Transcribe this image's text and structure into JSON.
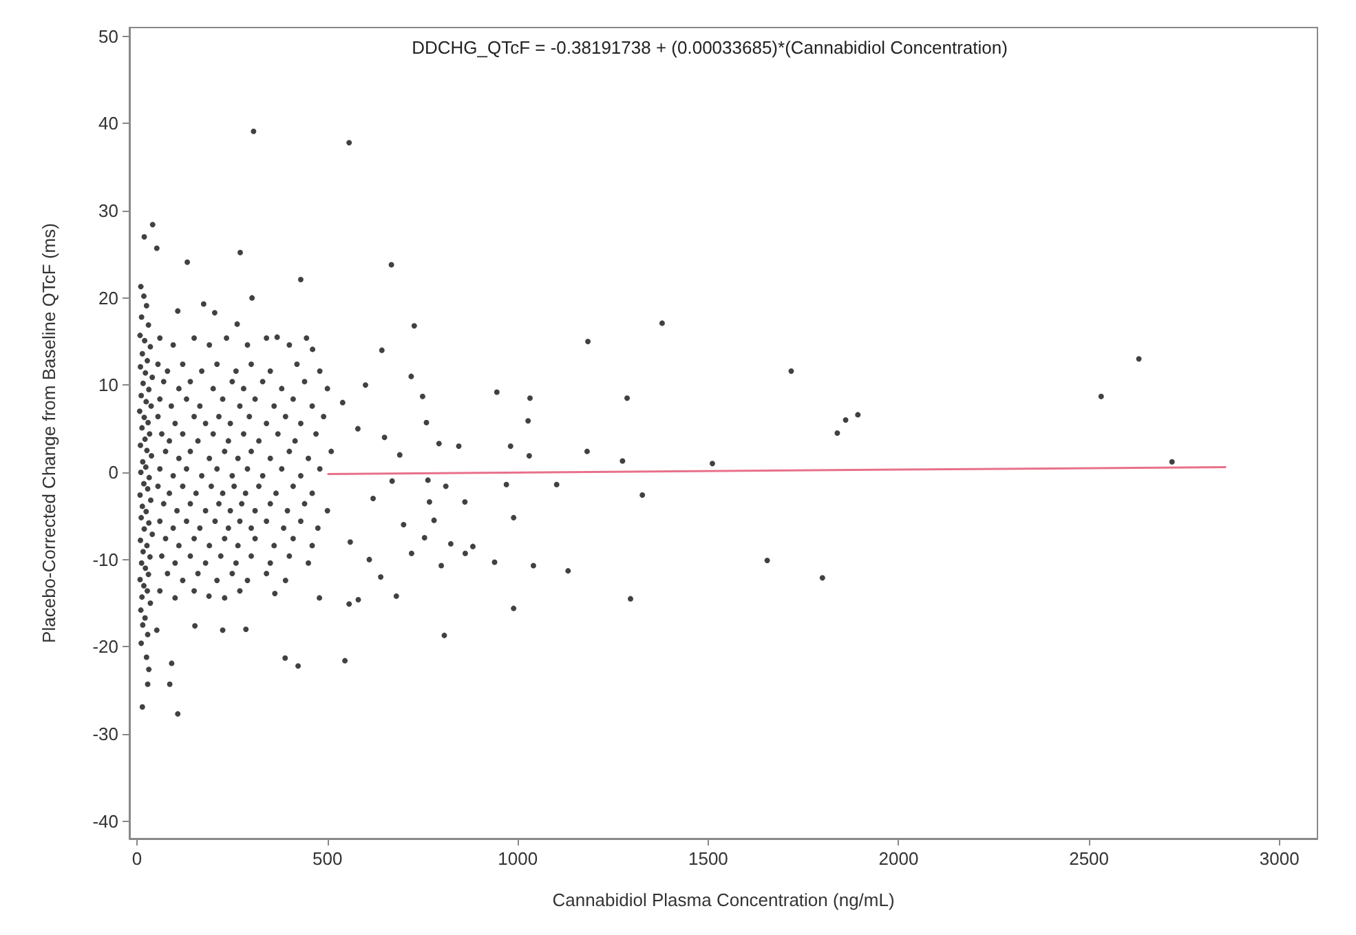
{
  "chart_data": {
    "type": "scatter",
    "xlabel": "Cannabidiol Plasma Concentration (ng/mL)",
    "ylabel": "Placebo-Corrected Change from Baseline QTcF (ms)",
    "annotations": [
      "DDCHG_QTcF = -0.38191738 + (0.00033685)*(Cannabidiol Concentration)"
    ],
    "xlim": [
      -20,
      3100
    ],
    "xticks": [
      0,
      500,
      1000,
      1500,
      2000,
      2500,
      3000
    ],
    "ylim": [
      -42,
      51
    ],
    "yticks": [
      -40,
      -30,
      -20,
      -10,
      0,
      10,
      20,
      30,
      40,
      50
    ],
    "grid": false,
    "marker": "circle",
    "series": [
      {
        "color": "#111111",
        "x": [
          10,
          18,
          25,
          12,
          30,
          8,
          20,
          35,
          14,
          27,
          9,
          22,
          40,
          16,
          31,
          11,
          24,
          37,
          7,
          19,
          29,
          13,
          33,
          21,
          9,
          26,
          38,
          15,
          23,
          10,
          32,
          18,
          28,
          8,
          36,
          14,
          24,
          11,
          31,
          19,
          40,
          9,
          26,
          16,
          34,
          12,
          22,
          30,
          8,
          18,
          27,
          13,
          35,
          10,
          21,
          15,
          28,
          11,
          60,
          95,
          150,
          190,
          235,
          290,
          340,
          400,
          445,
          55,
          80,
          120,
          170,
          210,
          260,
          300,
          350,
          420,
          480,
          70,
          110,
          140,
          200,
          250,
          280,
          330,
          380,
          440,
          500,
          60,
          90,
          130,
          165,
          225,
          270,
          310,
          360,
          410,
          460,
          55,
          100,
          150,
          180,
          215,
          245,
          295,
          340,
          390,
          430,
          490,
          65,
          85,
          120,
          160,
          200,
          240,
          280,
          320,
          370,
          415,
          470,
          75,
          110,
          140,
          190,
          230,
          265,
          300,
          350,
          400,
          450,
          510,
          60,
          95,
          130,
          170,
          210,
          250,
          290,
          330,
          380,
          430,
          480,
          55,
          85,
          120,
          155,
          195,
          225,
          255,
          285,
          320,
          365,
          410,
          460,
          70,
          105,
          140,
          180,
          215,
          245,
          275,
          310,
          350,
          395,
          440,
          500,
          60,
          95,
          130,
          165,
          205,
          240,
          270,
          300,
          340,
          385,
          430,
          475,
          75,
          110,
          150,
          190,
          230,
          265,
          310,
          360,
          410,
          460,
          65,
          100,
          140,
          180,
          220,
          260,
          300,
          350,
          400,
          450,
          80,
          120,
          160,
          210,
          250,
          290,
          340,
          390,
          60,
          100,
          150,
          230,
          270,
          540,
          600,
          620,
          650,
          700,
          690,
          560,
          720,
          640,
          580,
          610,
          670,
          306,
          557,
          41,
          19,
          52,
          132,
          271,
          430,
          668,
          302,
          175,
          204,
          107,
          263,
          368,
          461,
          643,
          728,
          1184,
          1379,
          1718,
          750,
          945,
          1032,
          1287,
          1893,
          1861,
          1839,
          760,
          793,
          845,
          981,
          1027,
          1030,
          1182,
          1275,
          1511,
          764,
          811,
          970,
          1102,
          1327,
          768,
          861,
          780,
          989,
          755,
          824,
          882,
          862,
          721,
          799,
          939,
          1041,
          1132,
          1655,
          1800,
          989,
          1296,
          807,
          2631,
          2532,
          2718,
          14,
          107,
          25,
          91,
          31,
          86,
          28,
          389,
          423,
          546,
          225,
          286,
          152,
          52,
          681,
          557,
          581,
          479,
          362,
          189
        ],
        "values": [
          21.3,
          20.2,
          19.1,
          17.8,
          16.9,
          15.7,
          15.1,
          14.4,
          13.6,
          12.8,
          12.1,
          11.4,
          10.9,
          10.2,
          9.5,
          8.8,
          8.1,
          7.6,
          7,
          6.3,
          5.7,
          5.1,
          4.4,
          3.8,
          3.1,
          2.5,
          1.9,
          1.2,
          0.6,
          0,
          -0.6,
          -1.3,
          -1.9,
          -2.6,
          -3.2,
          -3.9,
          -4.5,
          -5.2,
          -5.8,
          -6.5,
          -7.1,
          -7.8,
          -8.4,
          -9.1,
          -9.7,
          -10.4,
          -11,
          -11.7,
          -12.3,
          -13,
          -13.6,
          -14.3,
          -15,
          -15.8,
          -16.7,
          -17.5,
          -18.6,
          -19.6,
          15.4,
          14.6,
          15.4,
          14.6,
          15.4,
          14.6,
          15.4,
          14.6,
          15.4,
          12.4,
          11.6,
          12.4,
          11.6,
          12.4,
          11.6,
          12.4,
          11.6,
          12.4,
          11.6,
          10.4,
          9.6,
          10.4,
          9.6,
          10.4,
          9.6,
          10.4,
          9.6,
          10.4,
          9.6,
          8.4,
          7.6,
          8.4,
          7.6,
          8.4,
          7.6,
          8.4,
          7.6,
          8.4,
          7.6,
          6.4,
          5.6,
          6.4,
          5.6,
          6.4,
          5.6,
          6.4,
          5.6,
          6.4,
          5.6,
          6.4,
          4.4,
          3.6,
          4.4,
          3.6,
          4.4,
          3.6,
          4.4,
          3.6,
          4.4,
          3.6,
          4.4,
          2.4,
          1.6,
          2.4,
          1.6,
          2.4,
          1.6,
          2.4,
          1.6,
          2.4,
          1.6,
          2.4,
          0.4,
          -0.4,
          0.4,
          -0.4,
          0.4,
          -0.4,
          0.4,
          -0.4,
          0.4,
          -0.4,
          0.4,
          -1.6,
          -2.4,
          -1.6,
          -2.4,
          -1.6,
          -2.4,
          -1.6,
          -2.4,
          -1.6,
          -2.4,
          -1.6,
          -2.4,
          -3.6,
          -4.4,
          -3.6,
          -4.4,
          -3.6,
          -4.4,
          -3.6,
          -4.4,
          -3.6,
          -4.4,
          -3.6,
          -4.4,
          -5.6,
          -6.4,
          -5.6,
          -6.4,
          -5.6,
          -6.4,
          -5.6,
          -6.4,
          -5.6,
          -6.4,
          -5.6,
          -6.4,
          -7.6,
          -8.4,
          -7.6,
          -8.4,
          -7.6,
          -8.4,
          -7.6,
          -8.4,
          -7.6,
          -8.4,
          -9.6,
          -10.4,
          -9.6,
          -10.4,
          -9.6,
          -10.4,
          -9.6,
          -10.4,
          -9.6,
          -10.4,
          -11.6,
          -12.4,
          -11.6,
          -12.4,
          -11.6,
          -12.4,
          -11.6,
          -12.4,
          -13.6,
          -14.4,
          -13.6,
          -14.4,
          -13.6,
          8,
          10,
          -3,
          4,
          -6,
          2,
          -8,
          11,
          -12,
          5,
          -10,
          -1,
          39.1,
          37.8,
          28.4,
          27,
          25.7,
          24.1,
          25.2,
          22.1,
          23.8,
          20,
          19.3,
          18.3,
          18.5,
          17,
          15.5,
          14.1,
          14,
          16.8,
          15,
          17.1,
          11.6,
          8.7,
          9.2,
          8.5,
          8.5,
          6.6,
          6,
          4.5,
          5.7,
          3.3,
          3,
          3,
          5.9,
          1.9,
          2.4,
          1.3,
          1,
          -0.9,
          -1.6,
          -1.4,
          -1.4,
          -2.6,
          -3.4,
          -3.4,
          -5.5,
          -5.2,
          -7.5,
          -8.2,
          -8.5,
          -9.3,
          -9.3,
          -10.7,
          -10.3,
          -10.7,
          -11.3,
          -10.1,
          -12.1,
          -15.6,
          -14.5,
          -18.7,
          13,
          8.7,
          1.2,
          -26.9,
          -27.7,
          -21.2,
          -21.9,
          -22.6,
          -24.3,
          -24.3,
          -21.3,
          -22.2,
          -21.6,
          -18.1,
          -18,
          -17.6,
          -18.1,
          -14.2,
          -15.1,
          -14.6,
          -14.4,
          -13.9,
          -14.2
        ]
      },
      {
        "type": "line",
        "color": "#e8708a",
        "marker": "none",
        "x": [
          500,
          2860
        ],
        "values": [
          -0.2,
          0.6
        ]
      }
    ]
  }
}
